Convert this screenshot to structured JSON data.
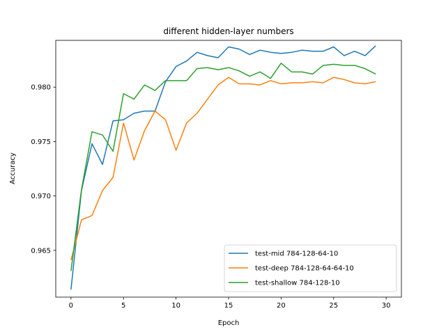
{
  "chart_data": {
    "type": "line",
    "title": "different hidden-layer numbers",
    "xlabel": "Epoch",
    "ylabel": "Accuracy",
    "xlim": [
      -1.45,
      31.45
    ],
    "ylim": [
      0.9607,
      0.9843
    ],
    "xticks": [
      0,
      5,
      10,
      15,
      20,
      25,
      30
    ],
    "yticks": [
      0.965,
      0.97,
      0.975,
      0.98
    ],
    "ytick_labels": [
      "0.965",
      "0.970",
      "0.975",
      "0.980"
    ],
    "grid": false,
    "legend_position": "lower-right",
    "x": [
      0,
      1,
      2,
      3,
      4,
      5,
      6,
      7,
      8,
      9,
      10,
      11,
      12,
      13,
      14,
      15,
      16,
      17,
      18,
      19,
      20,
      21,
      22,
      23,
      24,
      25,
      26,
      27,
      28,
      29
    ],
    "series": [
      {
        "name": "test-mid 784-128-64-10",
        "color": "#1f77b4",
        "values": [
          0.9614,
          0.9705,
          0.9748,
          0.9729,
          0.9769,
          0.977,
          0.9776,
          0.9778,
          0.9778,
          0.9805,
          0.9819,
          0.9824,
          0.9832,
          0.9829,
          0.9827,
          0.9837,
          0.9835,
          0.983,
          0.9834,
          0.9832,
          0.9831,
          0.9832,
          0.9834,
          0.9833,
          0.9833,
          0.9837,
          0.9829,
          0.9833,
          0.9829,
          0.9838
        ]
      },
      {
        "name": "test-deep 784-128-64-64-10",
        "color": "#ff7f0e",
        "values": [
          0.9641,
          0.9678,
          0.9682,
          0.9705,
          0.9717,
          0.9767,
          0.9733,
          0.976,
          0.9778,
          0.977,
          0.9742,
          0.9767,
          0.9776,
          0.9789,
          0.9802,
          0.9809,
          0.9803,
          0.9803,
          0.9802,
          0.9806,
          0.9803,
          0.9804,
          0.9804,
          0.9805,
          0.9804,
          0.9809,
          0.9807,
          0.9804,
          0.9803,
          0.9805
        ]
      },
      {
        "name": "test-shallow 784-128-10",
        "color": "#2ca02c",
        "values": [
          0.9631,
          0.9706,
          0.9759,
          0.9756,
          0.9741,
          0.9794,
          0.9789,
          0.9802,
          0.9797,
          0.9806,
          0.9806,
          0.9806,
          0.9817,
          0.9818,
          0.9816,
          0.9818,
          0.9815,
          0.981,
          0.9814,
          0.9808,
          0.9822,
          0.9814,
          0.9814,
          0.9812,
          0.982,
          0.9821,
          0.982,
          0.982,
          0.9817,
          0.9812
        ]
      }
    ]
  }
}
